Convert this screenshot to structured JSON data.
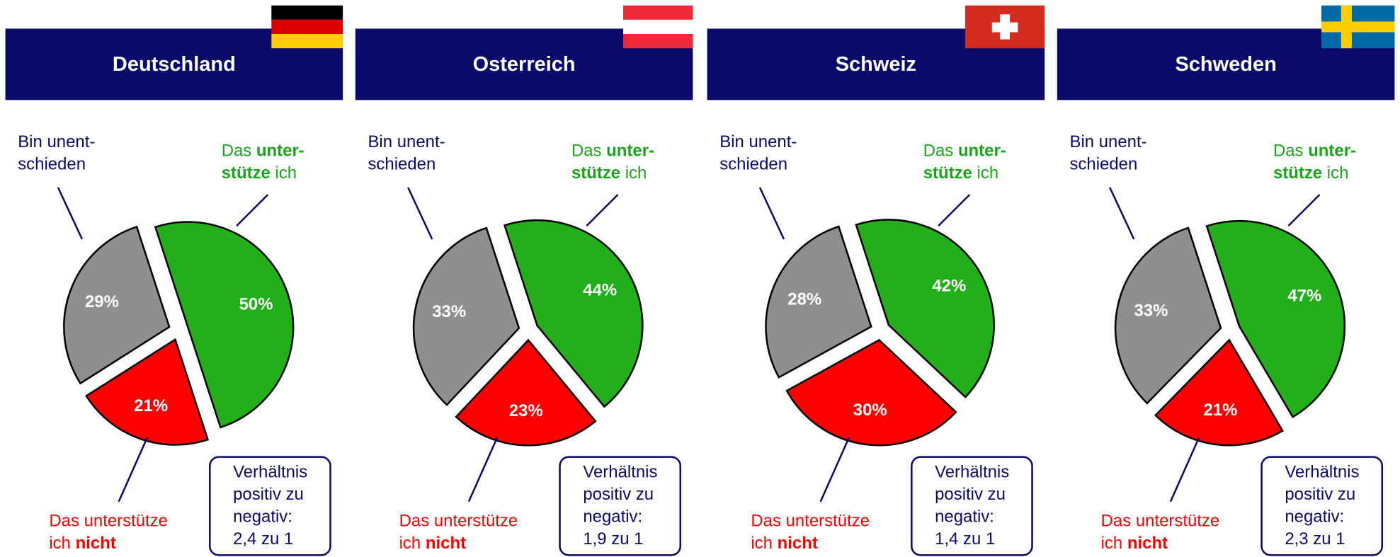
{
  "chart_data": [
    {
      "type": "pie",
      "title": "Deutschland",
      "categories": [
        [
          [
            {
              "text": "Das "
            },
            {
              "text": "unter-",
              "bold": true
            }
          ],
          [
            {
              "text": "stütze",
              "bold": true
            },
            {
              "text": " ich"
            }
          ]
        ],
        [
          [
            {
              "text": "Das unterstütze"
            }
          ],
          [
            {
              "text": "ich "
            },
            {
              "text": "nicht",
              "bold": true
            }
          ]
        ],
        [
          [
            {
              "text": "Bin unent-"
            }
          ],
          [
            {
              "text": "schieden"
            }
          ]
        ]
      ],
      "values": [
        50,
        21,
        29
      ],
      "value_labels": [
        "50%",
        "21%",
        "29%"
      ],
      "colors": [
        "#22b01a",
        "#ff0000",
        "#8f8f8f"
      ],
      "note": [
        "Verhältnis",
        "positiv zu",
        "negativ:",
        "2,4 zu 1"
      ]
    },
    {
      "type": "pie",
      "title": "Osterreich",
      "categories": [
        [
          [
            {
              "text": "Das "
            },
            {
              "text": "unter-",
              "bold": true
            }
          ],
          [
            {
              "text": "stütze",
              "bold": true
            },
            {
              "text": " ich"
            }
          ]
        ],
        [
          [
            {
              "text": "Das unterstütze"
            }
          ],
          [
            {
              "text": "ich "
            },
            {
              "text": "nicht",
              "bold": true
            }
          ]
        ],
        [
          [
            {
              "text": "Bin unent-"
            }
          ],
          [
            {
              "text": "schieden"
            }
          ]
        ]
      ],
      "values": [
        44,
        23,
        33
      ],
      "value_labels": [
        "44%",
        "23%",
        "33%"
      ],
      "colors": [
        "#22b01a",
        "#ff0000",
        "#8f8f8f"
      ],
      "note": [
        "Verhältnis",
        "positiv zu",
        "negativ:",
        "1,9 zu 1"
      ]
    },
    {
      "type": "pie",
      "title": "Schweiz",
      "categories": [
        [
          [
            {
              "text": "Das "
            },
            {
              "text": "unter-",
              "bold": true
            }
          ],
          [
            {
              "text": "stütze",
              "bold": true
            },
            {
              "text": " ich"
            }
          ]
        ],
        [
          [
            {
              "text": "Das unterstütze"
            }
          ],
          [
            {
              "text": "ich "
            },
            {
              "text": "nicht",
              "bold": true
            }
          ]
        ],
        [
          [
            {
              "text": "Bin unent-"
            }
          ],
          [
            {
              "text": "schieden"
            }
          ]
        ]
      ],
      "values": [
        42,
        30,
        28
      ],
      "value_labels": [
        "42%",
        "30%",
        "28%"
      ],
      "colors": [
        "#22b01a",
        "#ff0000",
        "#8f8f8f"
      ],
      "note": [
        "Verhältnis",
        "positiv zu",
        "negativ:",
        "1,4 zu 1"
      ]
    },
    {
      "type": "pie",
      "title": "Schweden",
      "categories": [
        [
          [
            {
              "text": "Das "
            },
            {
              "text": "unter-",
              "bold": true
            }
          ],
          [
            {
              "text": "stütze",
              "bold": true
            },
            {
              "text": " ich"
            }
          ]
        ],
        [
          [
            {
              "text": "Das unterstütze"
            }
          ],
          [
            {
              "text": "ich "
            },
            {
              "text": "nicht",
              "bold": true
            }
          ]
        ],
        [
          [
            {
              "text": "Bin unent-"
            }
          ],
          [
            {
              "text": "schieden"
            }
          ]
        ]
      ],
      "values": [
        47,
        21,
        33
      ],
      "value_labels": [
        "47%",
        "21%",
        "33%"
      ],
      "colors": [
        "#22b01a",
        "#ff0000",
        "#8f8f8f"
      ],
      "note": [
        "Verhältnis",
        "positiv zu",
        "negativ:",
        "2,3 zu 1"
      ]
    }
  ]
}
